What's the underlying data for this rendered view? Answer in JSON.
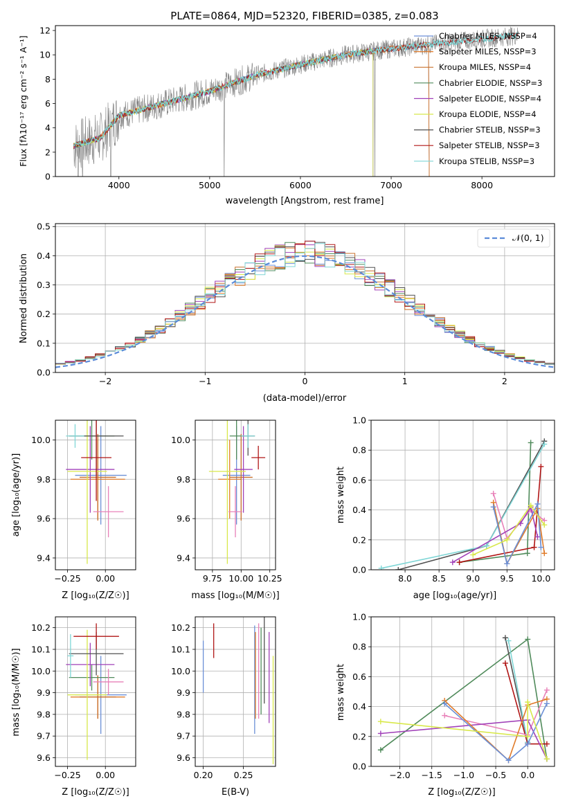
{
  "colors": {
    "s1": "#6b8fd6",
    "s2": "#e07b2a",
    "s3": "#c86f2a",
    "s4": "#4f8a5a",
    "s5": "#a040b8",
    "s6": "#d8e84a",
    "s7": "#505050",
    "s8": "#b01515",
    "s9": "#7fd6d6",
    "pink": "#e880b8",
    "gaussian": "#5b8bd9",
    "spectrum": "#808080"
  },
  "chart_data": [
    {
      "id": "spectrum",
      "type": "line",
      "title": "PLATE=0864, MJD=52320, FIBERID=0385, z=0.083",
      "xlabel": "wavelength [Angstrom, rest frame]",
      "ylabel": "Flux [fλ10⁻¹⁷ erg cm⁻² s⁻¹ A⁻¹]",
      "xlim": [
        3300,
        8800
      ],
      "ylim": [
        0,
        12.4
      ],
      "xticks": [
        "4000",
        "5000",
        "6000",
        "7000",
        "8000"
      ],
      "yticks": [
        "0",
        "2",
        "4",
        "6",
        "8",
        "10",
        "12"
      ],
      "grid": false,
      "legend": [
        "Chabrier MILES, NSSP=4",
        "Salpeter MILES, NSSP=3",
        "Kroupa MILES, NSSP=4",
        "Chabrier ELODIE, NSSP=3",
        "Salpeter ELODIE, NSSP=4",
        "Kroupa ELODIE, NSSP=4",
        "Chabrier STELIB, NSSP=3",
        "Salpeter STELIB, NSSP=3",
        "Kroupa STELIB, NSSP=3"
      ],
      "legend_placement": "right",
      "continuum": {
        "x": [
          3500,
          3800,
          4000,
          4500,
          5000,
          5500,
          6000,
          6500,
          7000,
          7500,
          8000,
          8400
        ],
        "y": [
          2.5,
          3.2,
          5.0,
          6.0,
          7.0,
          8.3,
          9.2,
          10.0,
          10.5,
          10.9,
          11.3,
          11.6
        ]
      },
      "model_cutoff_right": {
        "MILES": 7420,
        "ELODIE": 6800
      },
      "spikes_down": [
        3550,
        3600,
        3910,
        5160,
        6820
      ]
    },
    {
      "id": "histogram",
      "type": "line",
      "xlabel": "(data-model)/error",
      "ylabel": "Normed distribution",
      "xlim": [
        -2.5,
        2.5
      ],
      "ylim": [
        0,
        0.51
      ],
      "xticks": [
        "−2",
        "−1",
        "0",
        "1",
        "2"
      ],
      "yticks": [
        "0.0",
        "0.1",
        "0.2",
        "0.3",
        "0.4",
        "0.5"
      ],
      "grid": true,
      "legend": [
        "𝒩(0, 1)"
      ],
      "legend_placement": "upper right",
      "bin_width": 0.1
    },
    {
      "id": "age_vs_Z",
      "type": "scatter",
      "xlabel": "Z [log₁₀(Z/Z☉)]",
      "ylabel": "age [log₁₀(age/yr)]",
      "xlim": [
        -0.33,
        0.2
      ],
      "ylim": [
        9.34,
        10.1
      ],
      "xticks": [
        "−0.25",
        "0.00"
      ],
      "xtick_values": [
        -0.25,
        0.0
      ],
      "yticks": [
        "9.4",
        "9.6",
        "9.8",
        "10.0"
      ],
      "ytick_values": [
        9.4,
        9.6,
        9.8,
        10.0
      ],
      "grid": true,
      "points": [
        {
          "x": -0.03,
          "y": 9.82,
          "xerr": 0.17,
          "yerr": 0.25,
          "c": "s1"
        },
        {
          "x": -0.05,
          "y": 9.8,
          "xerr": 0.18,
          "yerr": 0.2,
          "c": "s2"
        },
        {
          "x": -0.05,
          "y": 9.81,
          "xerr": 0.12,
          "yerr": 0.22,
          "c": "s3"
        },
        {
          "x": -0.09,
          "y": 10.02,
          "xerr": 0.15,
          "yerr": 0.12,
          "c": "s4"
        },
        {
          "x": -0.1,
          "y": 9.85,
          "xerr": 0.16,
          "yerr": 0.22,
          "c": "s5"
        },
        {
          "x": -0.12,
          "y": 9.84,
          "xerr": 0.13,
          "yerr": 0.47,
          "c": "s6"
        },
        {
          "x": -0.06,
          "y": 10.02,
          "xerr": 0.18,
          "yerr": 0.2,
          "c": "s7"
        },
        {
          "x": -0.06,
          "y": 9.91,
          "xerr": 0.1,
          "yerr": 0.22,
          "c": "s8"
        },
        {
          "x": -0.2,
          "y": 10.02,
          "xerr": 0.06,
          "yerr": 0.06,
          "c": "s9"
        },
        {
          "x": 0.02,
          "y": 9.635,
          "xerr": 0.1,
          "yerr": 0.13,
          "c": "pink"
        }
      ]
    },
    {
      "id": "age_vs_mass",
      "type": "scatter",
      "xlabel": "mass [log₁₀(M/M☉)]",
      "ylabel": "",
      "xlim": [
        9.6,
        10.3
      ],
      "ylim": [
        9.34,
        10.1
      ],
      "xticks": [
        "9.75",
        "10.00",
        "10.25"
      ],
      "xtick_values": [
        9.75,
        10.0,
        10.25
      ],
      "yticks": [
        "9.4",
        "9.6",
        "9.8",
        "10.0"
      ],
      "ytick_values": [
        9.4,
        9.6,
        9.8,
        10.0
      ],
      "grid": true,
      "points": [
        {
          "x": 9.96,
          "y": 9.82,
          "xerr": 0.12,
          "yerr": 0.25,
          "c": "s1"
        },
        {
          "x": 9.9,
          "y": 9.8,
          "xerr": 0.1,
          "yerr": 0.2,
          "c": "s2"
        },
        {
          "x": 10.0,
          "y": 9.81,
          "xerr": 0.1,
          "yerr": 0.22,
          "c": "s3"
        },
        {
          "x": 9.96,
          "y": 10.02,
          "xerr": 0.06,
          "yerr": 0.12,
          "c": "s4"
        },
        {
          "x": 10.02,
          "y": 9.85,
          "xerr": 0.08,
          "yerr": 0.22,
          "c": "s5"
        },
        {
          "x": 9.88,
          "y": 9.84,
          "xerr": 0.16,
          "yerr": 0.47,
          "c": "s6"
        },
        {
          "x": 10.06,
          "y": 10.02,
          "xerr": 0.06,
          "yerr": 0.1,
          "c": "s7"
        },
        {
          "x": 10.15,
          "y": 9.91,
          "xerr": 0.06,
          "yerr": 0.06,
          "c": "s8"
        },
        {
          "x": 10.06,
          "y": 10.02,
          "xerr": 0.06,
          "yerr": 0.06,
          "c": "s9"
        },
        {
          "x": 9.95,
          "y": 9.635,
          "xerr": 0.06,
          "yerr": 0.13,
          "c": "pink"
        }
      ]
    },
    {
      "id": "mw_vs_age",
      "type": "line",
      "xlabel": "age [log₁₀(age/yr)]",
      "ylabel": "mass weight",
      "xlim": [
        7.5,
        10.2
      ],
      "ylim": [
        0,
        1
      ],
      "xticks": [
        "8.0",
        "8.5",
        "9.0",
        "9.5",
        "10.0"
      ],
      "xtick_values": [
        8.0,
        8.5,
        9.0,
        9.5,
        10.0
      ],
      "yticks": [
        "0.0",
        "0.2",
        "0.4",
        "0.6",
        "0.8",
        "1.0"
      ],
      "ytick_values": [
        0,
        0.2,
        0.4,
        0.6,
        0.8,
        1.0
      ],
      "grid": true,
      "series": [
        {
          "c": "s4",
          "x": [
            8.8,
            9.8,
            9.85
          ],
          "y": [
            0.05,
            0.11,
            0.85
          ]
        },
        {
          "c": "s7",
          "x": [
            7.9,
            9.2,
            10.05
          ],
          "y": [
            0.0,
            0.16,
            0.86
          ]
        },
        {
          "c": "s9",
          "x": [
            7.65,
            9.2,
            10.05
          ],
          "y": [
            0.01,
            0.16,
            0.84
          ]
        },
        {
          "c": "s8",
          "x": [
            8.8,
            9.9,
            10.0
          ],
          "y": [
            0.05,
            0.15,
            0.69
          ]
        },
        {
          "c": "pink",
          "x": [
            9.3,
            9.5,
            9.85,
            10.05
          ],
          "y": [
            0.51,
            0.21,
            0.4,
            0.33
          ]
        },
        {
          "c": "s5",
          "x": [
            8.7,
            9.7,
            9.85,
            9.95
          ],
          "y": [
            0.05,
            0.31,
            0.42,
            0.22
          ]
        },
        {
          "c": "s2",
          "x": [
            9.3,
            9.5,
            9.95,
            10.05
          ],
          "y": [
            0.45,
            0.04,
            0.41,
            0.11
          ]
        },
        {
          "c": "s1",
          "x": [
            9.3,
            9.5,
            9.95,
            10.0
          ],
          "y": [
            0.42,
            0.04,
            0.44,
            0.15
          ]
        },
        {
          "c": "s6",
          "x": [
            9.0,
            9.5,
            9.85,
            10.05
          ],
          "y": [
            0.1,
            0.2,
            0.43,
            0.3
          ]
        }
      ]
    },
    {
      "id": "mass_vs_Z",
      "type": "scatter",
      "xlabel": "Z [log₁₀(Z/Z☉)]",
      "ylabel": "mass [log₁₀(M/M☉)]",
      "xlim": [
        -0.33,
        0.2
      ],
      "ylim": [
        9.56,
        10.25
      ],
      "xticks": [
        "−0.25",
        "0.00"
      ],
      "xtick_values": [
        -0.25,
        0.0
      ],
      "yticks": [
        "9.6",
        "9.7",
        "9.8",
        "9.9",
        "10.0",
        "10.1",
        "10.2"
      ],
      "ytick_values": [
        9.6,
        9.7,
        9.8,
        9.9,
        10.0,
        10.1,
        10.2
      ],
      "grid": true,
      "points": [
        {
          "x": -0.03,
          "y": 9.89,
          "xerr": 0.17,
          "yerr": 0.18,
          "c": "s1"
        },
        {
          "x": -0.05,
          "y": 9.88,
          "xerr": 0.18,
          "yerr": 0.1,
          "c": "s2"
        },
        {
          "x": -0.05,
          "y": 9.88,
          "xerr": 0.12,
          "yerr": 0.1,
          "c": "s3"
        },
        {
          "x": -0.09,
          "y": 9.97,
          "xerr": 0.15,
          "yerr": 0.06,
          "c": "s4"
        },
        {
          "x": -0.1,
          "y": 10.03,
          "xerr": 0.16,
          "yerr": 0.1,
          "c": "s5"
        },
        {
          "x": -0.12,
          "y": 9.89,
          "xerr": 0.13,
          "yerr": 0.3,
          "c": "s6"
        },
        {
          "x": -0.06,
          "y": 10.08,
          "xerr": 0.18,
          "yerr": 0.1,
          "c": "s7"
        },
        {
          "x": -0.06,
          "y": 10.16,
          "xerr": 0.15,
          "yerr": 0.06,
          "c": "s8"
        },
        {
          "x": -0.23,
          "y": 10.07,
          "xerr": 0.02,
          "yerr": 0.1,
          "c": "s9"
        },
        {
          "x": 0.02,
          "y": 9.95,
          "xerr": 0.1,
          "yerr": 0.06,
          "c": "pink"
        }
      ]
    },
    {
      "id": "mass_vs_ebv",
      "type": "scatter",
      "xlabel": "E(B-V)",
      "ylabel": "",
      "xlim": [
        0.19,
        0.29
      ],
      "ylim": [
        9.56,
        10.25
      ],
      "xticks": [
        "0.20",
        "0.25"
      ],
      "xtick_values": [
        0.2,
        0.25
      ],
      "yticks": [
        "9.6",
        "9.7",
        "9.8",
        "9.9",
        "10.0",
        "10.1",
        "10.2"
      ],
      "ytick_values": [
        9.6,
        9.7,
        9.8,
        9.9,
        10.0,
        10.1,
        10.2
      ],
      "grid": true,
      "points": [
        {
          "x": 0.2,
          "y": 10.02,
          "xerr": 0.0,
          "yerr": 0.12,
          "c": "s1"
        },
        {
          "x": 0.264,
          "y": 9.96,
          "xerr": 0.0,
          "yerr": 0.25,
          "c": "s1"
        },
        {
          "x": 0.265,
          "y": 9.98,
          "xerr": 0.0,
          "yerr": 0.2,
          "c": "s2"
        },
        {
          "x": 0.272,
          "y": 10.0,
          "xerr": 0.0,
          "yerr": 0.2,
          "c": "s4"
        },
        {
          "x": 0.276,
          "y": 10.05,
          "xerr": 0.0,
          "yerr": 0.2,
          "c": "s7"
        },
        {
          "x": 0.282,
          "y": 9.97,
          "xerr": 0.0,
          "yerr": 0.21,
          "c": "s5"
        },
        {
          "x": 0.287,
          "y": 9.82,
          "xerr": 0.0,
          "yerr": 0.25,
          "c": "s6"
        },
        {
          "x": 0.269,
          "y": 10.0,
          "xerr": 0.0,
          "yerr": 0.22,
          "c": "pink"
        },
        {
          "x": 0.213,
          "y": 10.14,
          "xerr": 0.0,
          "yerr": 0.08,
          "c": "s8"
        }
      ]
    },
    {
      "id": "mw_vs_Z",
      "type": "line",
      "xlabel": "Z [log₁₀(Z/Z☉)]",
      "ylabel": "mass weight",
      "xlim": [
        -2.45,
        0.42
      ],
      "ylim": [
        0,
        1
      ],
      "xticks": [
        "−2.0",
        "−1.5",
        "−1.0",
        "−0.5",
        "0.0"
      ],
      "xtick_values": [
        -2.0,
        -1.5,
        -1.0,
        -0.5,
        0.0
      ],
      "yticks": [
        "0.0",
        "0.2",
        "0.4",
        "0.6",
        "0.8",
        "1.0"
      ],
      "ytick_values": [
        0,
        0.2,
        0.4,
        0.6,
        0.8,
        1.0
      ],
      "grid": true,
      "series": [
        {
          "c": "s4",
          "x": [
            -2.3,
            0.0,
            0.3
          ],
          "y": [
            0.11,
            0.85,
            0.05
          ]
        },
        {
          "c": "s7",
          "x": [
            -0.35,
            0.0
          ],
          "y": [
            0.86,
            0.16
          ]
        },
        {
          "c": "s9",
          "x": [
            -0.3,
            0.0
          ],
          "y": [
            0.84,
            0.16
          ]
        },
        {
          "c": "s8",
          "x": [
            -0.35,
            0.0,
            0.3
          ],
          "y": [
            0.69,
            0.15,
            0.15
          ]
        },
        {
          "c": "pink",
          "x": [
            -1.3,
            0.0,
            0.3
          ],
          "y": [
            0.34,
            0.21,
            0.51
          ]
        },
        {
          "c": "s5",
          "x": [
            -2.3,
            0.0,
            0.3
          ],
          "y": [
            0.22,
            0.31,
            0.05
          ]
        },
        {
          "c": "s2",
          "x": [
            -1.3,
            -0.3,
            0.0,
            0.3
          ],
          "y": [
            0.44,
            0.04,
            0.41,
            0.45
          ]
        },
        {
          "c": "s1",
          "x": [
            -1.3,
            -0.3,
            0.0,
            0.3
          ],
          "y": [
            0.42,
            0.04,
            0.15,
            0.42
          ]
        },
        {
          "c": "s6",
          "x": [
            -2.3,
            0.0,
            0.0,
            0.3
          ],
          "y": [
            0.3,
            0.2,
            0.43,
            0.05
          ]
        }
      ]
    }
  ]
}
